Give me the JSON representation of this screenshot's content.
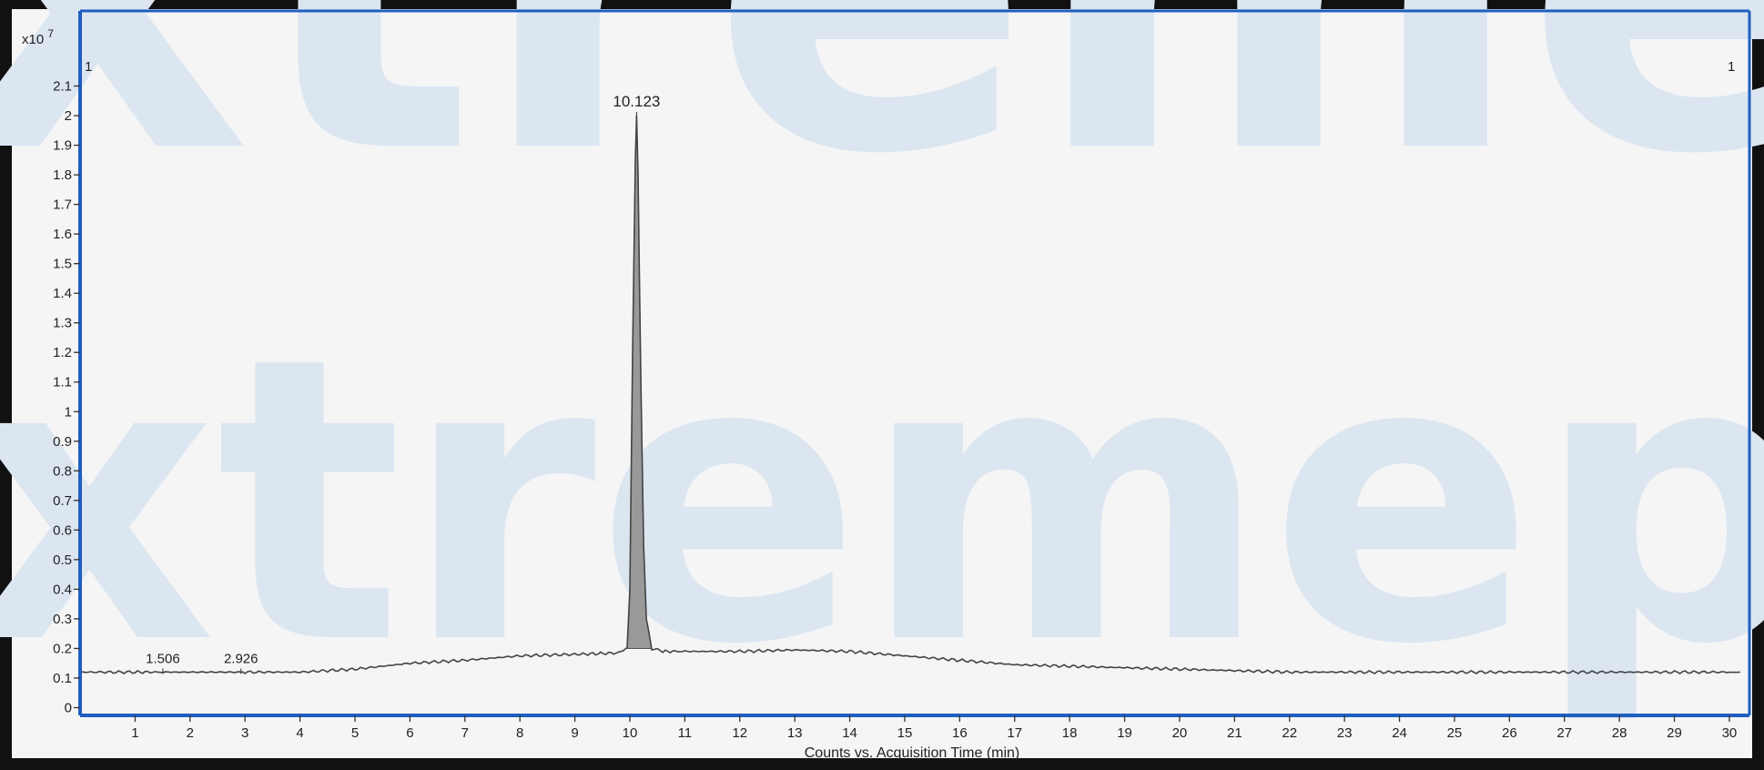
{
  "chart_data": {
    "type": "line",
    "title": "",
    "xlabel": "Counts vs. Acquisition Time (min)",
    "ylabel": "",
    "y_multiplier_label": "x10",
    "y_multiplier_exponent": "7",
    "xlim": [
      0,
      30.2
    ],
    "ylim": [
      -0.02,
      2.2
    ],
    "x_ticks": [
      "1",
      "2",
      "3",
      "4",
      "5",
      "6",
      "7",
      "8",
      "9",
      "10",
      "11",
      "12",
      "13",
      "14",
      "15",
      "16",
      "17",
      "18",
      "19",
      "20",
      "21",
      "22",
      "23",
      "24",
      "25",
      "26",
      "27",
      "28",
      "29",
      "30"
    ],
    "y_ticks": [
      "0",
      "0.1",
      "0.2",
      "0.3",
      "0.4",
      "0.5",
      "0.6",
      "0.7",
      "0.8",
      "0.9",
      "1",
      "1.1",
      "1.2",
      "1.3",
      "1.4",
      "1.5",
      "1.6",
      "1.7",
      "1.8",
      "1.9",
      "2",
      "2.1"
    ],
    "corner_labels": {
      "left": "1",
      "right": "1"
    },
    "line_color": "#444444",
    "axis_color": "#1f5fbf",
    "peak_fill_color": "#999999",
    "grid": false,
    "series": [
      {
        "x": [
          0,
          1,
          1.506,
          2,
          2.926,
          3,
          4,
          5,
          6,
          7,
          8,
          9,
          9.8,
          9.95,
          10.0,
          10.05,
          10.1,
          10.123,
          10.15,
          10.2,
          10.25,
          10.3,
          10.4,
          10.6,
          11,
          12,
          13,
          14,
          15,
          16,
          17,
          18,
          19,
          20,
          21,
          22,
          23,
          24,
          25,
          26,
          27,
          28,
          29,
          30,
          30.2
        ],
        "y": [
          0.12,
          0.12,
          0.12,
          0.12,
          0.12,
          0.12,
          0.12,
          0.13,
          0.15,
          0.16,
          0.175,
          0.18,
          0.185,
          0.2,
          0.4,
          1.2,
          1.85,
          2.0,
          1.8,
          1.1,
          0.55,
          0.3,
          0.2,
          0.19,
          0.19,
          0.19,
          0.195,
          0.19,
          0.175,
          0.16,
          0.145,
          0.14,
          0.135,
          0.13,
          0.125,
          0.12,
          0.12,
          0.12,
          0.12,
          0.12,
          0.12,
          0.12,
          0.12,
          0.12,
          0.12
        ]
      }
    ],
    "integrated_peak": {
      "x_start": 9.95,
      "x_end": 10.4
    },
    "annotations": [
      {
        "x": 10.123,
        "y": 2.0,
        "text": "10.123"
      },
      {
        "x": 1.506,
        "y": 0.12,
        "text": "1.506"
      },
      {
        "x": 2.926,
        "y": 0.12,
        "text": "2.926"
      }
    ]
  },
  "watermark": {
    "text": "xtremepeptides",
    "color": "#dbe6f1"
  }
}
